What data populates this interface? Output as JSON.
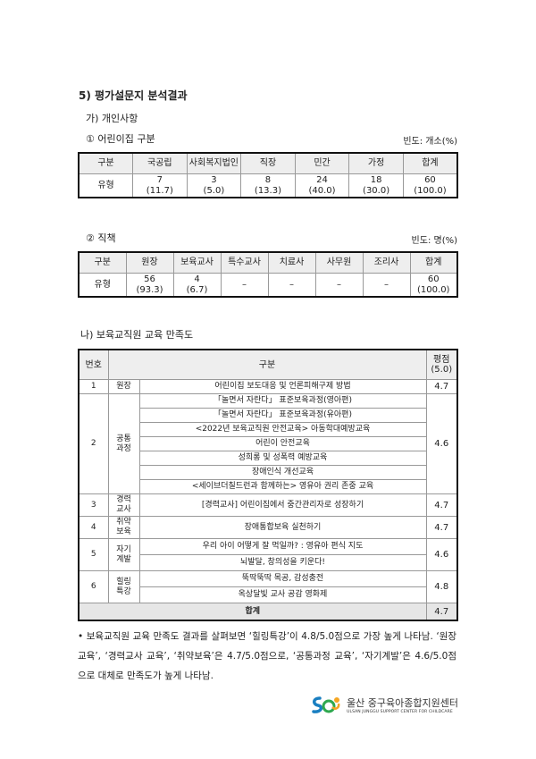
{
  "heading": "5) 평가설문지 분석결과",
  "section_a": "가) 개인사항",
  "table1": {
    "title": "① 어린이집 구분",
    "unit": "빈도: 개소(%)",
    "headers": [
      "구분",
      "국공립",
      "사회복지법인",
      "직장",
      "민간",
      "가정",
      "합계"
    ],
    "row_label": "유형",
    "counts": [
      "7",
      "3",
      "8",
      "24",
      "18",
      "60"
    ],
    "percents": [
      "(11.7)",
      "(5.0)",
      "(13.3)",
      "(40.0)",
      "(30.0)",
      "(100.0)"
    ]
  },
  "table2": {
    "title": "② 직책",
    "unit": "빈도: 명(%)",
    "headers": [
      "구분",
      "원장",
      "보육교사",
      "특수교사",
      "치료사",
      "사무원",
      "조리사",
      "합계"
    ],
    "row_label": "유형",
    "counts": [
      "56",
      "4",
      "–",
      "–",
      "–",
      "–",
      "60"
    ],
    "percents": [
      "(93.3)",
      "(6.7)",
      "",
      "",
      "",
      "",
      "(100.0)"
    ]
  },
  "section_b": "나) 보육교직원 교육 만족도",
  "table3": {
    "headers": {
      "no": "번호",
      "category": "구분",
      "score": "평점",
      "score_sub": "(5.0)"
    },
    "groups": [
      {
        "no": "1",
        "category": "원장",
        "items": [
          "어린이집 보도대응 및 언론피해구제 방법"
        ],
        "score": "4.7"
      },
      {
        "no": "2",
        "category": "공통\n과정",
        "items": [
          "「놀면서 자란다」 표준보육과정(영아편)",
          "「놀면서 자란다」 표준보육과정(유아편)",
          "<2022년 보육교직원 안전교육> 아동학대예방교육",
          "어린이 안전교육",
          "성희롱 및 성폭력 예방교육",
          "장애인식 개선교육",
          "<세이브더칠드런과 함께하는> 영유아 권리 존중 교육"
        ],
        "score": "4.6"
      },
      {
        "no": "3",
        "category": "경력\n교사",
        "items": [
          "[경력교사] 어린이집에서 중간관리자로 성장하기"
        ],
        "score": "4.7"
      },
      {
        "no": "4",
        "category": "취약\n보육",
        "items": [
          "장애통합보육 실천하기"
        ],
        "score": "4.7"
      },
      {
        "no": "5",
        "category": "자기\n계발",
        "items": [
          "우리 아이 어떻게 잘 먹일까? : 영유아 편식 지도",
          "뇌발달, 창의성을 키운다!"
        ],
        "score": "4.6"
      },
      {
        "no": "6",
        "category": "힐링\n특강",
        "items": [
          "뚝딱뚝딱 목공, 감성충전",
          "옥상달빛 교사 공감 영화제"
        ],
        "score": "4.8"
      }
    ],
    "total_label": "합계",
    "total_score": "4.7"
  },
  "summary": "• 보육교직원 교육 만족도 결과를 살펴보면 ‘힐링특강’이 4.8/5.0점으로 가장 높게 나타남. ‘원장교육’, ‘경력교사 교육’, ‘취약보육’은 4.7/5.0점으로, ‘공통과정 교육’, ‘자기계발’은 4.6/5.0점으로 대체로 만족도가 높게 나타남.",
  "footer_logo": {
    "name": "울산 중구육아종합지원센터",
    "subtitle": "ULSAN JUNGGU SUPPORT CENTER FOR CHILDCARE"
  }
}
